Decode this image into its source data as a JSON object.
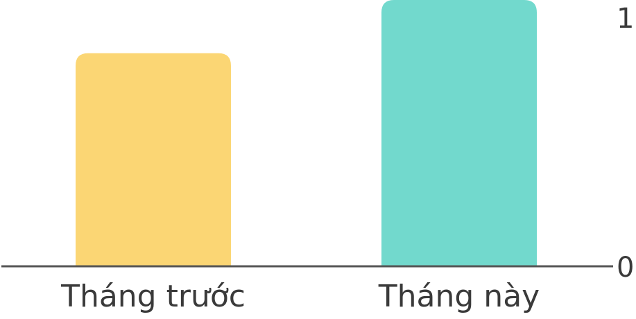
{
  "chart_data": {
    "type": "bar",
    "categories": [
      "Tháng trước",
      "Tháng này"
    ],
    "values": [
      0.8,
      1.0
    ],
    "colors": [
      "#fbd674",
      "#72d9cd"
    ],
    "ylim": [
      0,
      1
    ],
    "yticks": [
      "0",
      "1"
    ],
    "axis_color": "#555555",
    "title": "",
    "xlabel": "",
    "ylabel": ""
  }
}
